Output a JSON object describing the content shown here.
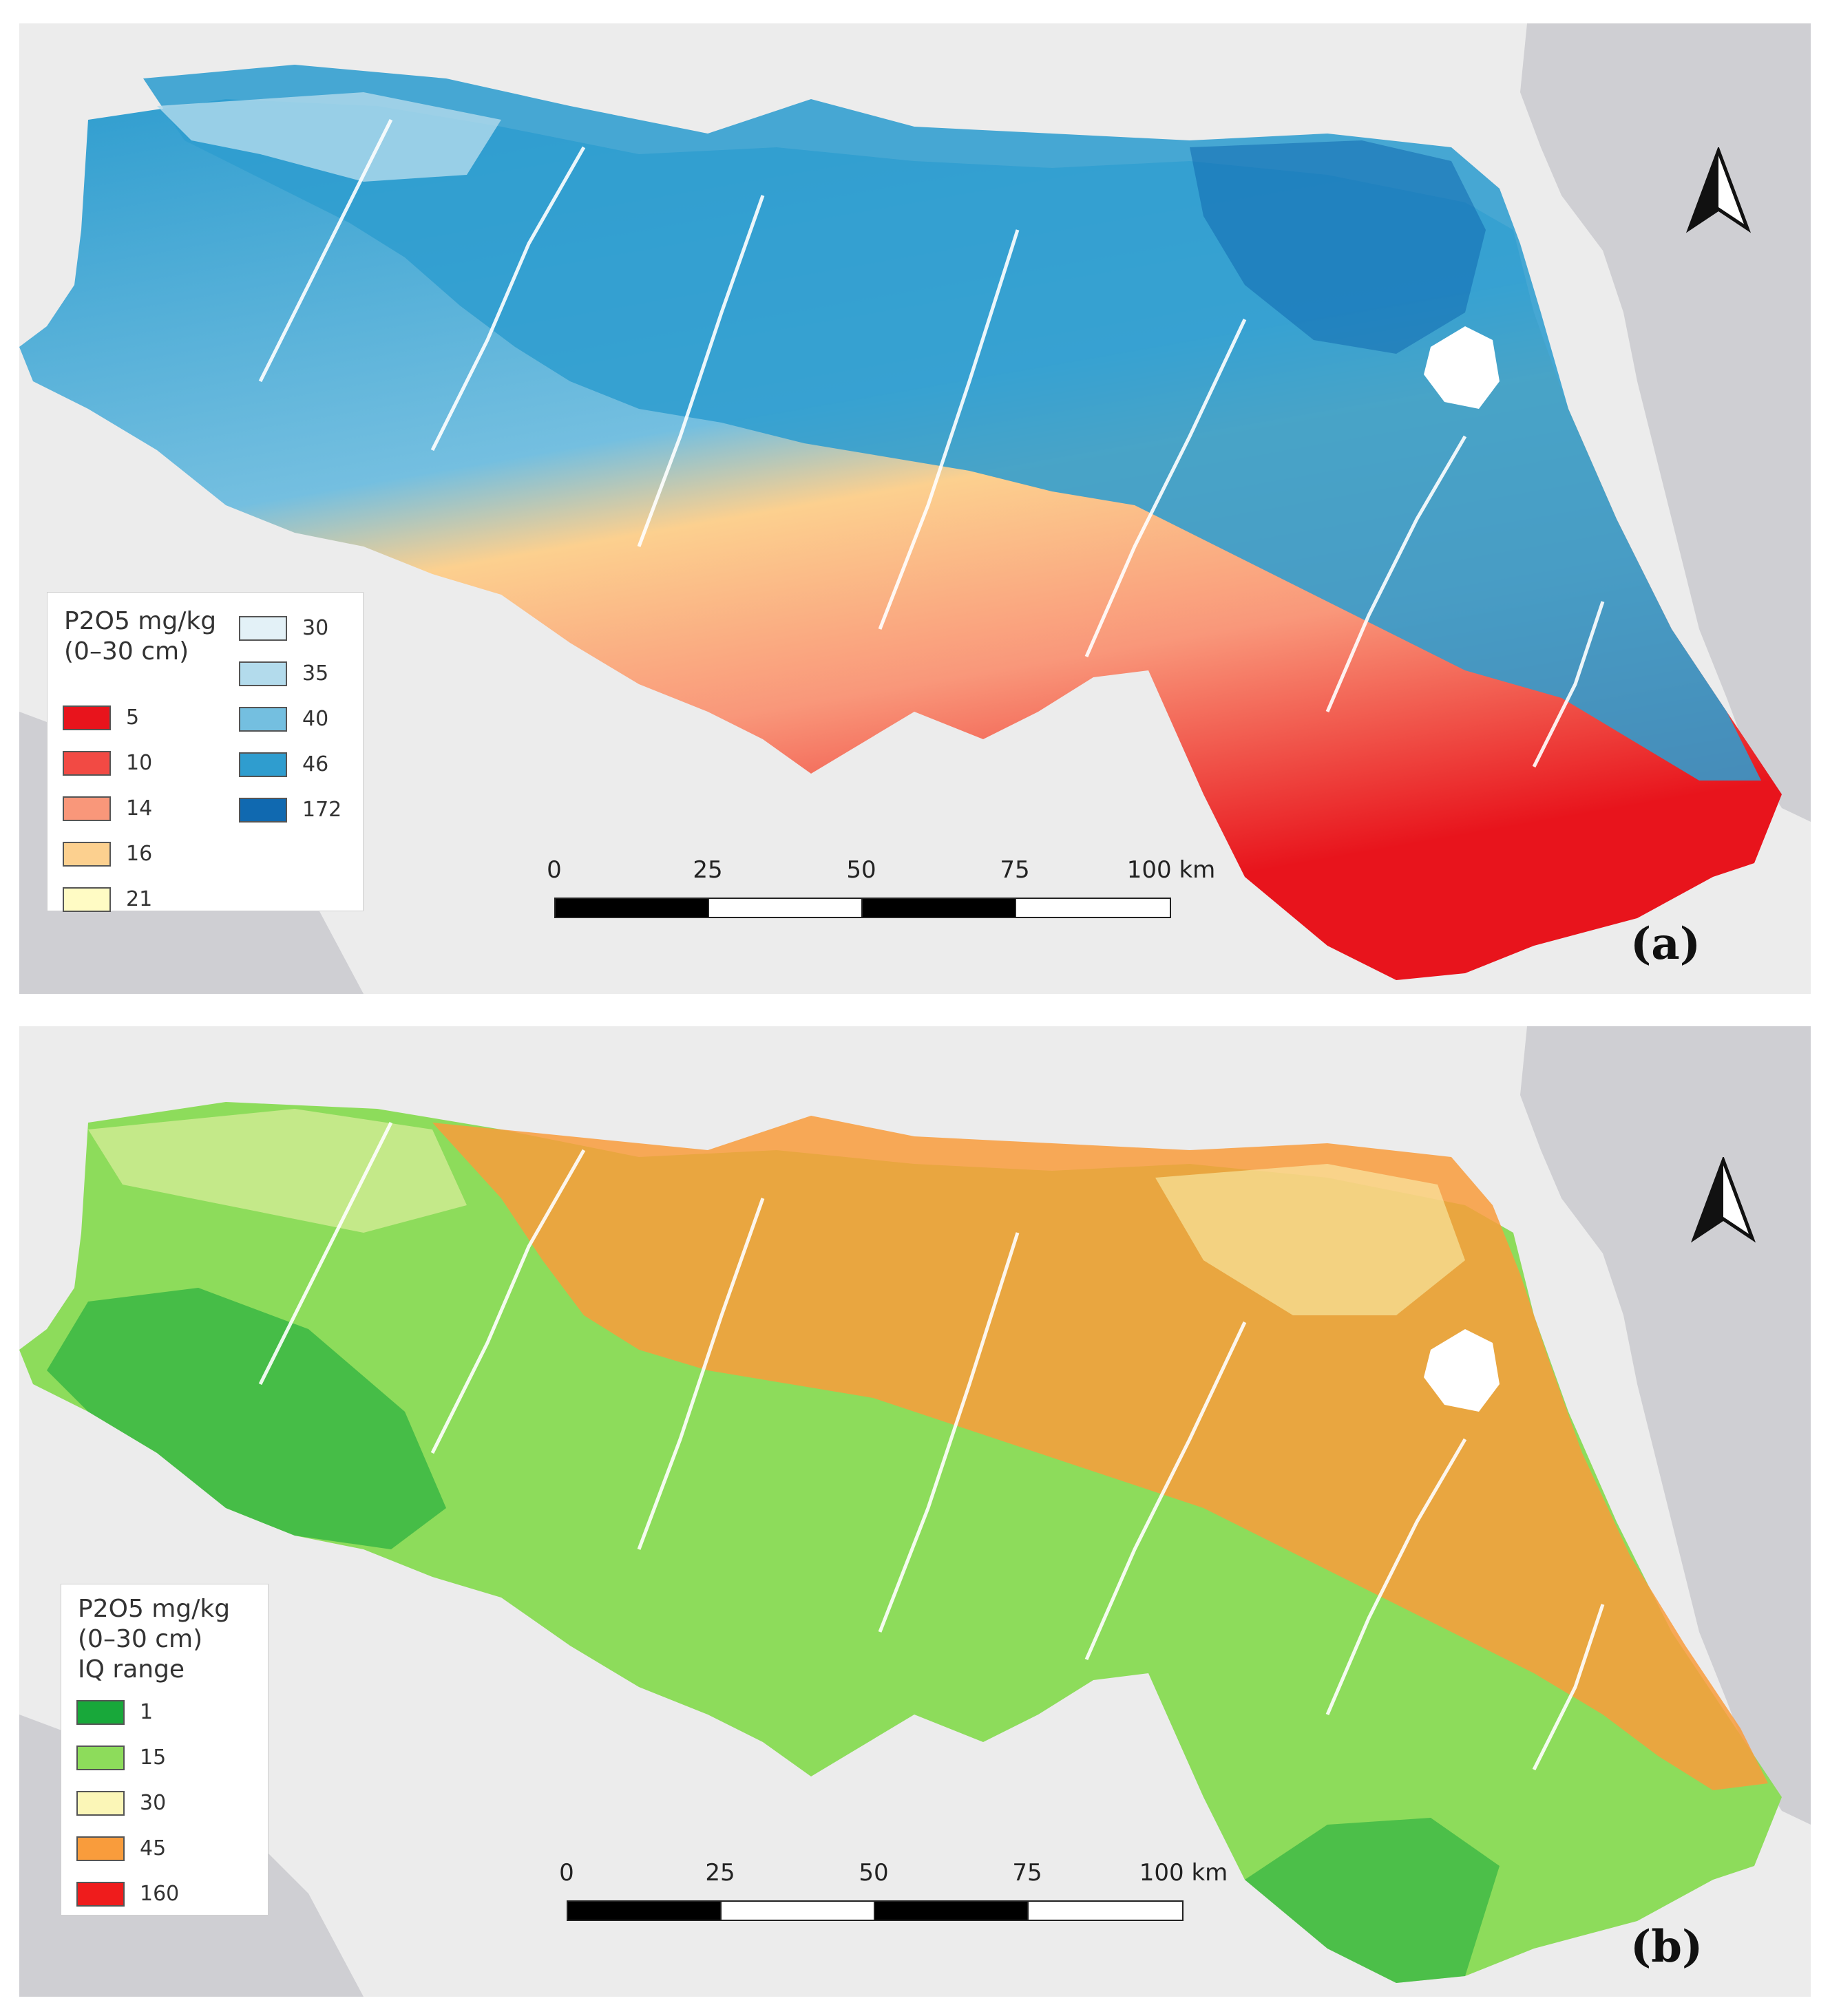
{
  "panel_a": {
    "legend_title_line1": "P2O5 mg/kg",
    "legend_title_line2": "(0–30 cm)",
    "classes": [
      {
        "label": "5",
        "color": "#e8141c"
      },
      {
        "label": "10",
        "color": "#f24a44"
      },
      {
        "label": "14",
        "color": "#f9977a"
      },
      {
        "label": "16",
        "color": "#fcd08f"
      },
      {
        "label": "21",
        "color": "#fffbc4"
      },
      {
        "label": "30",
        "color": "#e3f1f7"
      },
      {
        "label": "35",
        "color": "#b3dbec"
      },
      {
        "label": "40",
        "color": "#74bfe0"
      },
      {
        "label": "46",
        "color": "#2f9dcf"
      },
      {
        "label": "172",
        "color": "#1069b0"
      }
    ],
    "scale_labels": [
      "0",
      "25",
      "50",
      "75",
      "100 km"
    ],
    "panel_label": "(a)"
  },
  "panel_b": {
    "legend_title_line1": "P2O5 mg/kg",
    "legend_title_line2": "(0–30 cm)",
    "legend_title_line3": "IQ range",
    "classes": [
      {
        "label": "1",
        "color": "#18a83a"
      },
      {
        "label": "15",
        "color": "#8ddc5b"
      },
      {
        "label": "30",
        "color": "#fbf6b7"
      },
      {
        "label": "45",
        "color": "#f99c3c"
      },
      {
        "label": "160",
        "color": "#ef1c1c"
      }
    ],
    "scale_labels": [
      "0",
      "25",
      "50",
      "75",
      "100 km"
    ],
    "panel_label": "(b)"
  },
  "map_colors": {
    "sea": "#cfcfd3",
    "land": "#ececec",
    "rivers": "#ffffff",
    "lagoon": "#ffffff"
  },
  "icons": [
    "north-arrow-icon"
  ]
}
